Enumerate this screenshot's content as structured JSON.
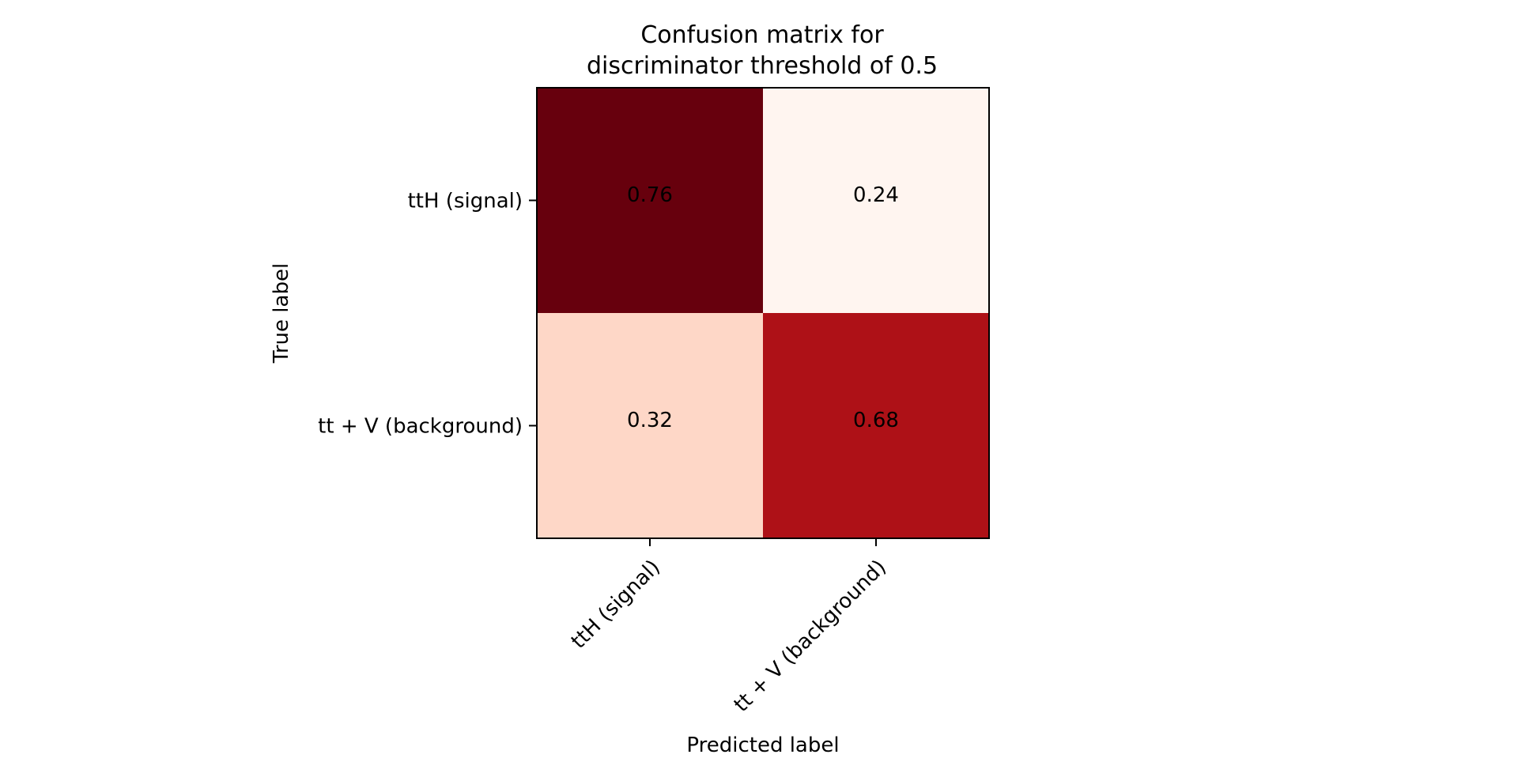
{
  "chart_data": {
    "type": "heatmap",
    "title_lines": [
      "Confusion matrix for",
      "discriminator threshold of 0.5"
    ],
    "xlabel": "Predicted label",
    "ylabel": "True label",
    "x_categories": [
      "ttH (signal)",
      "tt + V (background)"
    ],
    "y_categories": [
      "ttH (signal)",
      "tt + V (background)"
    ],
    "values": [
      [
        0.76,
        0.24
      ],
      [
        0.32,
        0.68
      ]
    ],
    "value_labels": [
      [
        "0.76",
        "0.24"
      ],
      [
        "0.32",
        "0.68"
      ]
    ],
    "colormap": "Reds",
    "color_range": [
      0.24,
      0.76
    ],
    "grid": false
  }
}
